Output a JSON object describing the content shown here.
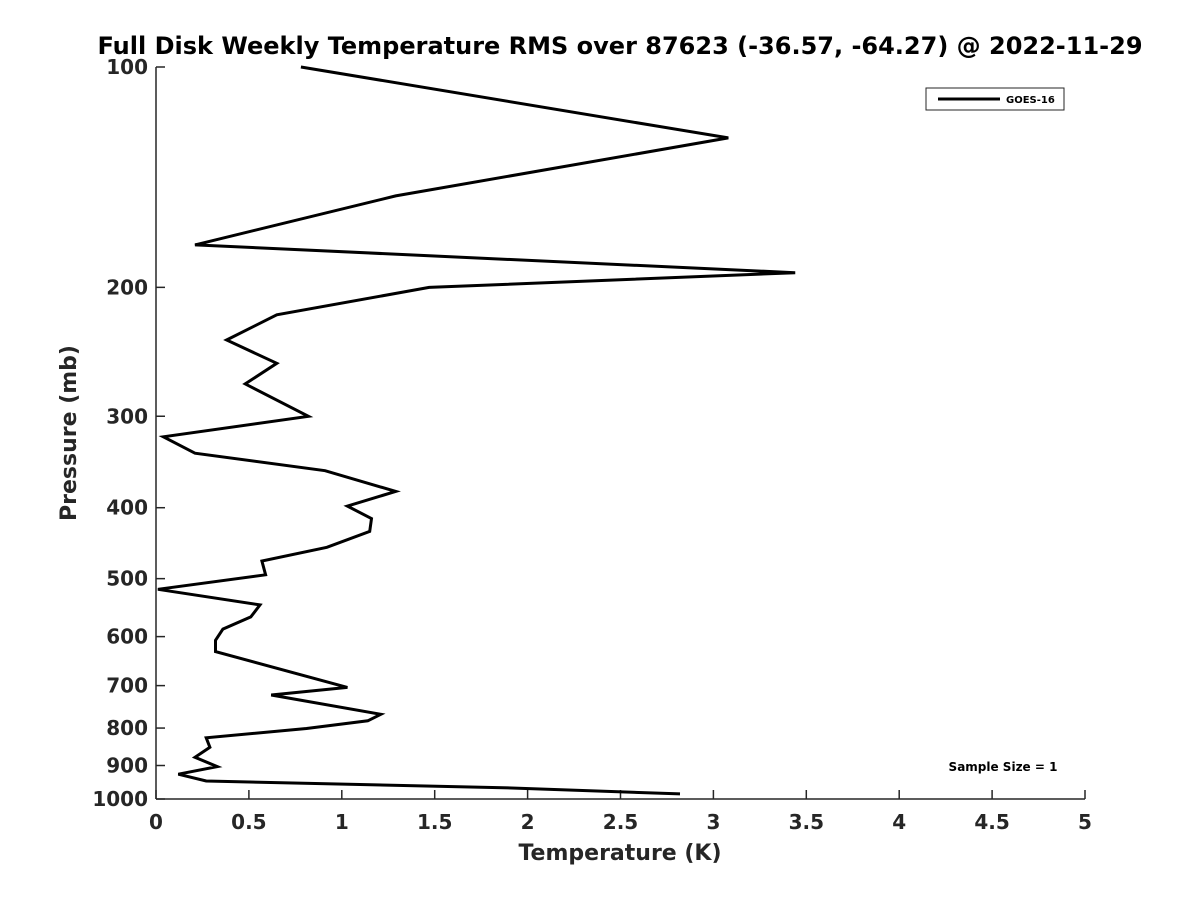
{
  "chart_data": {
    "type": "line",
    "title": "Full Disk Weekly Temperature RMS over 87623 (-36.57, -64.27) @ 2022-11-29",
    "xlabel": "Temperature (K)",
    "ylabel": "Pressure (mb)",
    "xlim": [
      0,
      5
    ],
    "ylim": [
      100,
      1000
    ],
    "yscale": "log",
    "y_reversed": true,
    "x_ticks": [
      0,
      0.5,
      1,
      1.5,
      2,
      2.5,
      3,
      3.5,
      4,
      4.5,
      5
    ],
    "x_tick_labels": [
      "0",
      "0.5",
      "1",
      "1.5",
      "2",
      "2.5",
      "3",
      "3.5",
      "4",
      "4.5",
      "5"
    ],
    "y_ticks": [
      100,
      200,
      300,
      400,
      500,
      600,
      700,
      800,
      900,
      1000
    ],
    "y_tick_labels": [
      "100",
      "200",
      "300",
      "400",
      "500",
      "600",
      "700",
      "800",
      "900",
      "1000"
    ],
    "grid": false,
    "legend_position": "top-right",
    "annotation": "Sample Size = 1",
    "series": [
      {
        "name": "GOES-16",
        "color": "#000000",
        "points": [
          {
            "x": 0.78,
            "p": 100
          },
          {
            "x": 3.08,
            "p": 125
          },
          {
            "x": 1.29,
            "p": 150
          },
          {
            "x": 0.21,
            "p": 175
          },
          {
            "x": 3.44,
            "p": 191
          },
          {
            "x": 1.47,
            "p": 200
          },
          {
            "x": 0.65,
            "p": 218
          },
          {
            "x": 0.38,
            "p": 236
          },
          {
            "x": 0.65,
            "p": 254
          },
          {
            "x": 0.48,
            "p": 271
          },
          {
            "x": 0.82,
            "p": 300
          },
          {
            "x": 0.04,
            "p": 320
          },
          {
            "x": 0.21,
            "p": 337
          },
          {
            "x": 0.91,
            "p": 356
          },
          {
            "x": 1.29,
            "p": 380
          },
          {
            "x": 1.03,
            "p": 398
          },
          {
            "x": 1.16,
            "p": 414
          },
          {
            "x": 1.15,
            "p": 431
          },
          {
            "x": 0.92,
            "p": 453
          },
          {
            "x": 0.57,
            "p": 473
          },
          {
            "x": 0.59,
            "p": 494
          },
          {
            "x": 0.01,
            "p": 517
          },
          {
            "x": 0.56,
            "p": 543
          },
          {
            "x": 0.51,
            "p": 564
          },
          {
            "x": 0.36,
            "p": 586
          },
          {
            "x": 0.32,
            "p": 607
          },
          {
            "x": 0.32,
            "p": 629
          },
          {
            "x": 1.03,
            "p": 704
          },
          {
            "x": 0.62,
            "p": 721
          },
          {
            "x": 1.21,
            "p": 766
          },
          {
            "x": 1.14,
            "p": 782
          },
          {
            "x": 0.81,
            "p": 801
          },
          {
            "x": 0.27,
            "p": 825
          },
          {
            "x": 0.29,
            "p": 850
          },
          {
            "x": 0.21,
            "p": 877
          },
          {
            "x": 0.33,
            "p": 903
          },
          {
            "x": 0.12,
            "p": 925
          },
          {
            "x": 0.27,
            "p": 945
          },
          {
            "x": 1.87,
            "p": 965
          },
          {
            "x": 2.82,
            "p": 984
          }
        ]
      }
    ]
  }
}
